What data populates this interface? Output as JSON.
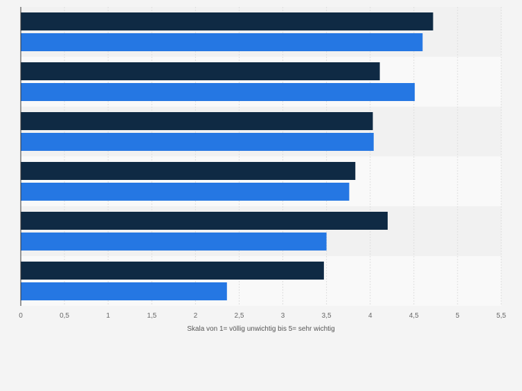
{
  "chart_data": {
    "type": "bar",
    "orientation": "horizontal",
    "categories": [
      "",
      "",
      "",
      "",
      "",
      ""
    ],
    "series": [
      {
        "values": [
          4.72,
          4.11,
          4.03,
          3.83,
          4.2,
          3.47
        ]
      },
      {
        "values": [
          4.6,
          4.51,
          4.04,
          3.76,
          3.5,
          2.36
        ]
      }
    ],
    "xlabel": "Skala von 1= völlig unwichtig bis 5= sehr wichtig",
    "xlim": [
      0,
      5.5
    ],
    "x_ticks": [
      "0",
      "0,5",
      "1",
      "1,5",
      "2",
      "2,5",
      "3",
      "3,5",
      "4",
      "4,5",
      "5",
      "5,5"
    ],
    "grid": true,
    "legend": "none"
  },
  "colors": {
    "series_1": "#0f2a44",
    "series_2": "#2577e3",
    "band_light": "#f9f9f9",
    "band_dark": "#f1f1f1",
    "grid": "#dddddd",
    "axis": "#333333",
    "tick_text": "#666666"
  }
}
